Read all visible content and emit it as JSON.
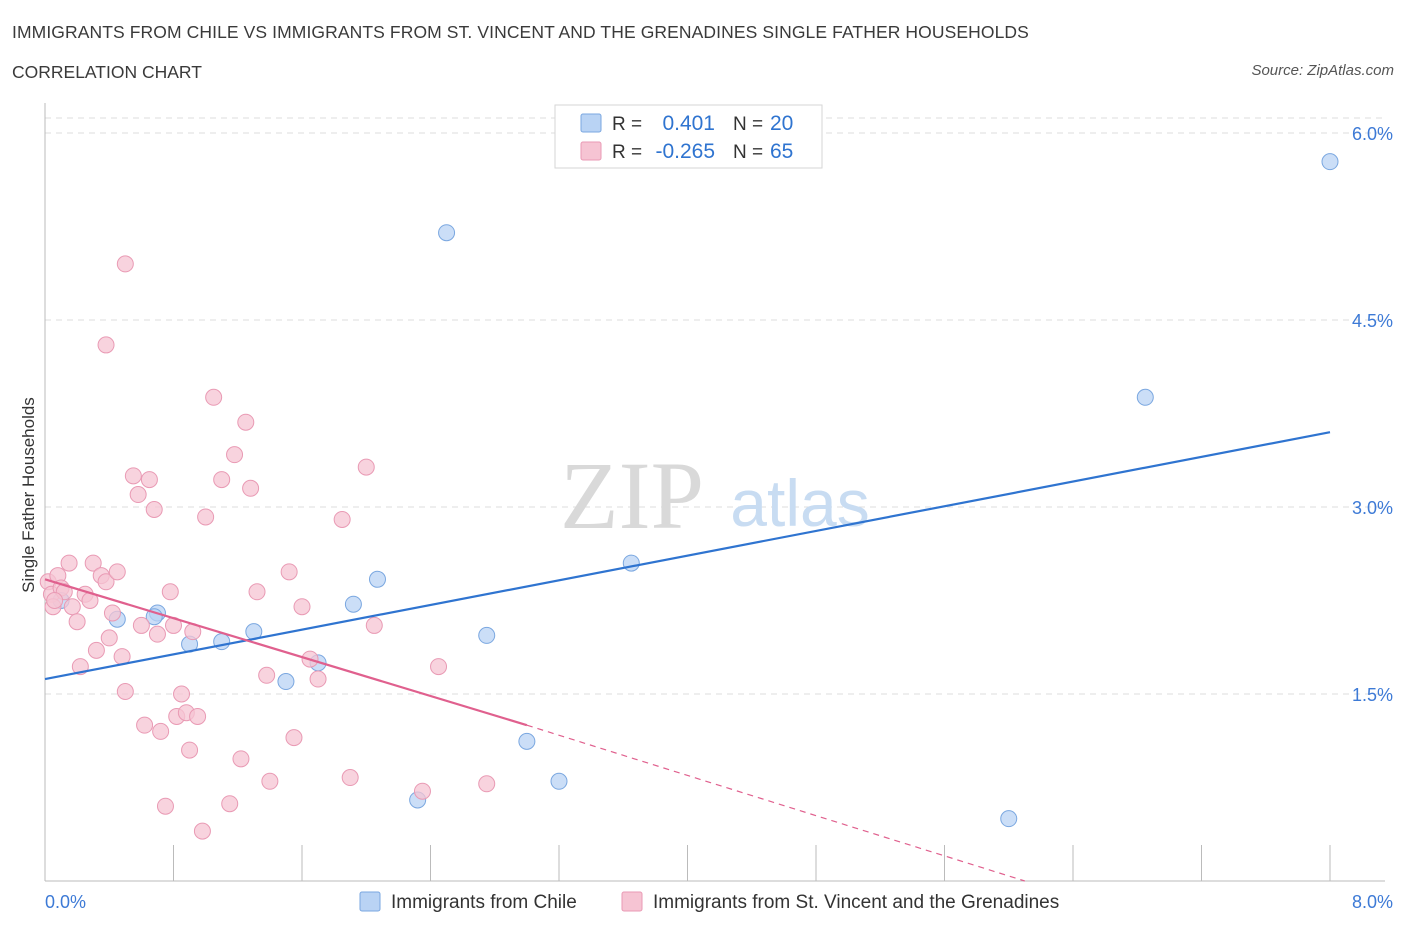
{
  "title": "IMMIGRANTS FROM CHILE VS IMMIGRANTS FROM ST. VINCENT AND THE GRENADINES SINGLE FATHER HOUSEHOLDS",
  "subtitle": "CORRELATION CHART",
  "source": "Source: ZipAtlas.com",
  "watermark": {
    "zip": "ZIP",
    "atlas": "atlas"
  },
  "colors": {
    "blue_fill": "#b9d3f4",
    "blue_stroke": "#7aa7e0",
    "blue_line": "#2f74d0",
    "pink_fill": "#f6c4d3",
    "pink_stroke": "#e99ab4",
    "pink_line": "#e0608e",
    "tick_label": "#3d7ad6",
    "grid": "#dddddd"
  },
  "stats_box": {
    "rows": [
      {
        "r_label": "R =",
        "r_value": "0.401",
        "n_label": "N =",
        "n_value": "20"
      },
      {
        "r_label": "R =",
        "r_value": "-0.265",
        "n_label": "N =",
        "n_value": "65"
      }
    ]
  },
  "chart_data": {
    "type": "scatter",
    "xlabel": "",
    "ylabel": "Single Father Households",
    "xlim": [
      0,
      8.4
    ],
    "ylim": [
      0,
      6.0
    ],
    "x_tick_labels": [
      {
        "value": 0,
        "label": "0.0%"
      },
      {
        "value": 8.0,
        "label": "8.0%"
      }
    ],
    "x_minor_ticks": [
      0.8,
      1.6,
      2.4,
      3.2,
      4.0,
      4.8,
      5.6,
      6.4,
      7.2,
      8.0
    ],
    "y_ticks": [
      {
        "value": 1.5,
        "label": "1.5%"
      },
      {
        "value": 3.0,
        "label": "3.0%"
      },
      {
        "value": 4.5,
        "label": "4.5%"
      },
      {
        "value": 6.0,
        "label": "6.0%"
      }
    ],
    "grid": true,
    "legend_position": "bottom-center",
    "series": [
      {
        "name": "Immigrants from Chile",
        "color": "blue",
        "points": [
          [
            0.1,
            2.25
          ],
          [
            0.45,
            2.1
          ],
          [
            0.7,
            2.15
          ],
          [
            0.68,
            2.12
          ],
          [
            0.9,
            1.9
          ],
          [
            1.1,
            1.92
          ],
          [
            1.3,
            2.0
          ],
          [
            1.5,
            1.6
          ],
          [
            1.7,
            1.75
          ],
          [
            1.92,
            2.22
          ],
          [
            2.07,
            2.42
          ],
          [
            2.75,
            1.97
          ],
          [
            2.32,
            0.65
          ],
          [
            3.0,
            1.12
          ],
          [
            3.2,
            0.8
          ],
          [
            3.65,
            2.55
          ],
          [
            6.0,
            0.5
          ],
          [
            6.85,
            3.88
          ],
          [
            2.5,
            5.2
          ],
          [
            8.0,
            5.77
          ]
        ],
        "trend": {
          "x0": 0.0,
          "y0": 1.62,
          "x1": 8.0,
          "y1": 3.6
        }
      },
      {
        "name": "Immigrants from St. Vincent and the Grenadines",
        "color": "pink",
        "points": [
          [
            0.02,
            2.4
          ],
          [
            0.04,
            2.3
          ],
          [
            0.05,
            2.2
          ],
          [
            0.08,
            2.45
          ],
          [
            0.1,
            2.35
          ],
          [
            0.12,
            2.32
          ],
          [
            0.15,
            2.55
          ],
          [
            0.17,
            2.2
          ],
          [
            0.2,
            2.08
          ],
          [
            0.22,
            1.72
          ],
          [
            0.25,
            2.3
          ],
          [
            0.28,
            2.25
          ],
          [
            0.3,
            2.55
          ],
          [
            0.32,
            1.85
          ],
          [
            0.35,
            2.45
          ],
          [
            0.38,
            2.4
          ],
          [
            0.4,
            1.95
          ],
          [
            0.42,
            2.15
          ],
          [
            0.45,
            2.48
          ],
          [
            0.48,
            1.8
          ],
          [
            0.5,
            1.52
          ],
          [
            0.55,
            3.25
          ],
          [
            0.58,
            3.1
          ],
          [
            0.6,
            2.05
          ],
          [
            0.62,
            1.25
          ],
          [
            0.65,
            3.22
          ],
          [
            0.68,
            2.98
          ],
          [
            0.7,
            1.98
          ],
          [
            0.72,
            1.2
          ],
          [
            0.75,
            0.6
          ],
          [
            0.78,
            2.32
          ],
          [
            0.8,
            2.05
          ],
          [
            0.82,
            1.32
          ],
          [
            0.85,
            1.5
          ],
          [
            0.88,
            1.35
          ],
          [
            0.9,
            1.05
          ],
          [
            0.92,
            2.0
          ],
          [
            0.95,
            1.32
          ],
          [
            0.98,
            0.4
          ],
          [
            1.0,
            2.92
          ],
          [
            1.05,
            3.88
          ],
          [
            1.1,
            3.22
          ],
          [
            1.15,
            0.62
          ],
          [
            1.18,
            3.42
          ],
          [
            1.22,
            0.98
          ],
          [
            1.25,
            3.68
          ],
          [
            1.28,
            3.15
          ],
          [
            1.32,
            2.32
          ],
          [
            1.38,
            1.65
          ],
          [
            1.4,
            0.8
          ],
          [
            1.52,
            2.48
          ],
          [
            1.55,
            1.15
          ],
          [
            1.6,
            2.2
          ],
          [
            1.65,
            1.78
          ],
          [
            1.7,
            1.62
          ],
          [
            1.85,
            2.9
          ],
          [
            1.9,
            0.83
          ],
          [
            2.0,
            3.32
          ],
          [
            2.05,
            2.05
          ],
          [
            2.35,
            0.72
          ],
          [
            2.45,
            1.72
          ],
          [
            2.75,
            0.78
          ],
          [
            0.38,
            4.3
          ],
          [
            0.5,
            4.95
          ],
          [
            0.06,
            2.25
          ]
        ],
        "trend": {
          "x0": 0.0,
          "y0": 2.42,
          "x1": 3.0,
          "y1": 1.25
        },
        "trend_dashed": {
          "x0": 3.0,
          "y0": 1.25,
          "x1": 6.1,
          "y1": 0.0
        }
      }
    ],
    "legend": [
      {
        "label": "Immigrants from Chile",
        "color": "blue"
      },
      {
        "label": "Immigrants from St. Vincent and the Grenadines",
        "color": "pink"
      }
    ]
  }
}
